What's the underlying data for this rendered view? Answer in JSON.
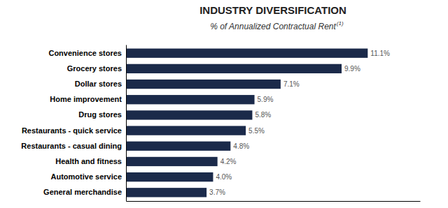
{
  "chart_data": {
    "type": "bar",
    "orientation": "horizontal",
    "title": "INDUSTRY DIVERSIFICATION",
    "subtitle": "% of Annualized Contractual Rent",
    "annotations": [
      "(1)"
    ],
    "categories": [
      "Convenience stores",
      "Grocery stores",
      "Dollar stores",
      "Home improvement",
      "Drug stores",
      "Restaurants - quick service",
      "Restaurants - casual dining",
      "Health and fitness",
      "Automotive service",
      "General merchandise"
    ],
    "values": [
      11.1,
      9.9,
      7.1,
      5.9,
      5.8,
      5.5,
      4.8,
      4.2,
      4.0,
      3.7
    ],
    "value_labels": [
      "11.1%",
      "9.9%",
      "7.1%",
      "5.9%",
      "5.8%",
      "5.5%",
      "4.8%",
      "4.2%",
      "4.0%",
      "3.7%"
    ],
    "data_labels": true,
    "color": "#1b2a4a",
    "xlim": [
      0,
      13.5
    ],
    "tick_labels": "y",
    "grid": false
  }
}
